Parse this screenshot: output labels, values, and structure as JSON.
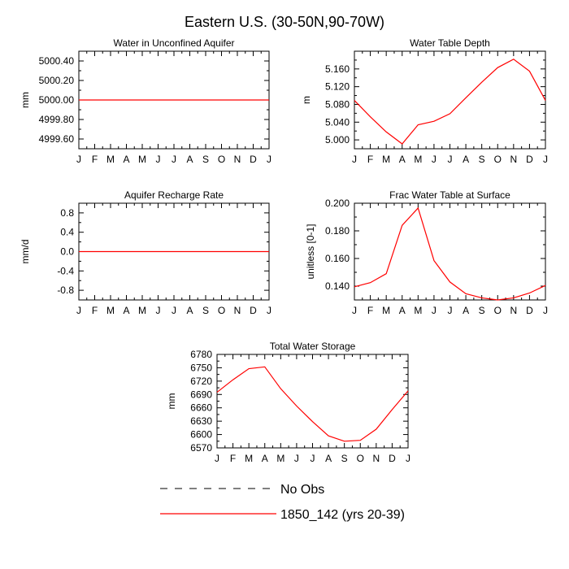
{
  "figure_title": "Eastern U.S. (30-50N,90-70W)",
  "legend": {
    "entries": [
      {
        "label": "No Obs",
        "style": "dashed",
        "color": "#000000"
      },
      {
        "label": "1850_142 (yrs 20-39)",
        "style": "solid",
        "color": "#ff0000"
      }
    ]
  },
  "colors": {
    "model": "#ff0000",
    "obs": "#000000",
    "axes": "#000000"
  },
  "chart_data": [
    {
      "type": "line",
      "title": "Water in Unconfined Aquifer",
      "ylabel": "mm",
      "categories": [
        "J",
        "F",
        "M",
        "A",
        "M",
        "J",
        "J",
        "A",
        "S",
        "O",
        "N",
        "D",
        "J"
      ],
      "ylim": [
        4999.5,
        5000.5
      ],
      "yticks": [
        4999.6,
        4999.8,
        5000.0,
        5000.2,
        5000.4
      ],
      "ytick_labels": [
        "4999.60",
        "4999.80",
        "5000.00",
        "5000.20",
        "5000.40"
      ],
      "series": [
        {
          "name": "1850_142 (yrs 20-39)",
          "values": [
            5000,
            5000,
            5000,
            5000,
            5000,
            5000,
            5000,
            5000,
            5000,
            5000,
            5000,
            5000,
            5000
          ]
        }
      ]
    },
    {
      "type": "line",
      "title": "Water Table Depth",
      "ylabel": "m",
      "categories": [
        "J",
        "F",
        "M",
        "A",
        "M",
        "J",
        "J",
        "A",
        "S",
        "O",
        "N",
        "D",
        "J"
      ],
      "ylim": [
        4.98,
        5.2
      ],
      "yticks": [
        5.0,
        5.04,
        5.08,
        5.12,
        5.16
      ],
      "ytick_labels": [
        "5.000",
        "5.040",
        "5.080",
        "5.120",
        "5.160"
      ],
      "series": [
        {
          "name": "1850_142 (yrs 20-39)",
          "values": [
            5.089,
            5.052,
            5.018,
            4.991,
            5.034,
            5.042,
            5.059,
            5.095,
            5.13,
            5.163,
            5.182,
            5.155,
            5.089
          ]
        }
      ]
    },
    {
      "type": "line",
      "title": "Aquifer Recharge Rate",
      "ylabel": "mm/d",
      "categories": [
        "J",
        "F",
        "M",
        "A",
        "M",
        "J",
        "J",
        "A",
        "S",
        "O",
        "N",
        "D",
        "J"
      ],
      "ylim": [
        -1.0,
        1.0
      ],
      "yticks": [
        -0.8,
        -0.4,
        0.0,
        0.4,
        0.8
      ],
      "ytick_labels": [
        "-0.8",
        "-0.4",
        "0.0",
        "0.4",
        "0.8"
      ],
      "series": [
        {
          "name": "1850_142 (yrs 20-39)",
          "values": [
            0,
            0,
            0,
            0,
            0,
            0,
            0,
            0,
            0,
            0,
            0,
            0,
            0
          ]
        }
      ]
    },
    {
      "type": "line",
      "title": "Frac Water Table at Surface",
      "ylabel": "unitless [0-1]",
      "categories": [
        "J",
        "F",
        "M",
        "A",
        "M",
        "J",
        "J",
        "A",
        "S",
        "O",
        "N",
        "D",
        "J"
      ],
      "ylim": [
        0.13,
        0.2
      ],
      "yticks": [
        0.14,
        0.16,
        0.18,
        0.2
      ],
      "ytick_labels": [
        "0.140",
        "0.160",
        "0.180",
        "0.200"
      ],
      "series": [
        {
          "name": "1850_142 (yrs 20-39)",
          "values": [
            0.1395,
            0.1425,
            0.149,
            0.184,
            0.1965,
            0.1585,
            0.143,
            0.1345,
            0.1315,
            0.13,
            0.1315,
            0.135,
            0.1405
          ]
        }
      ]
    },
    {
      "type": "line",
      "title": "Total Water Storage",
      "ylabel": "mm",
      "categories": [
        "J",
        "F",
        "M",
        "A",
        "M",
        "J",
        "J",
        "A",
        "S",
        "O",
        "N",
        "D",
        "J"
      ],
      "ylim": [
        6570,
        6780
      ],
      "yticks": [
        6570,
        6600,
        6630,
        6660,
        6690,
        6720,
        6750,
        6780
      ],
      "ytick_labels": [
        "6570",
        "6600",
        "6630",
        "6660",
        "6690",
        "6720",
        "6750",
        "6780"
      ],
      "series": [
        {
          "name": "1850_142 (yrs 20-39)",
          "values": [
            6695,
            6723,
            6748,
            6752,
            6703,
            6664,
            6629,
            6597,
            6585,
            6587,
            6612,
            6656,
            6698
          ]
        }
      ]
    }
  ]
}
